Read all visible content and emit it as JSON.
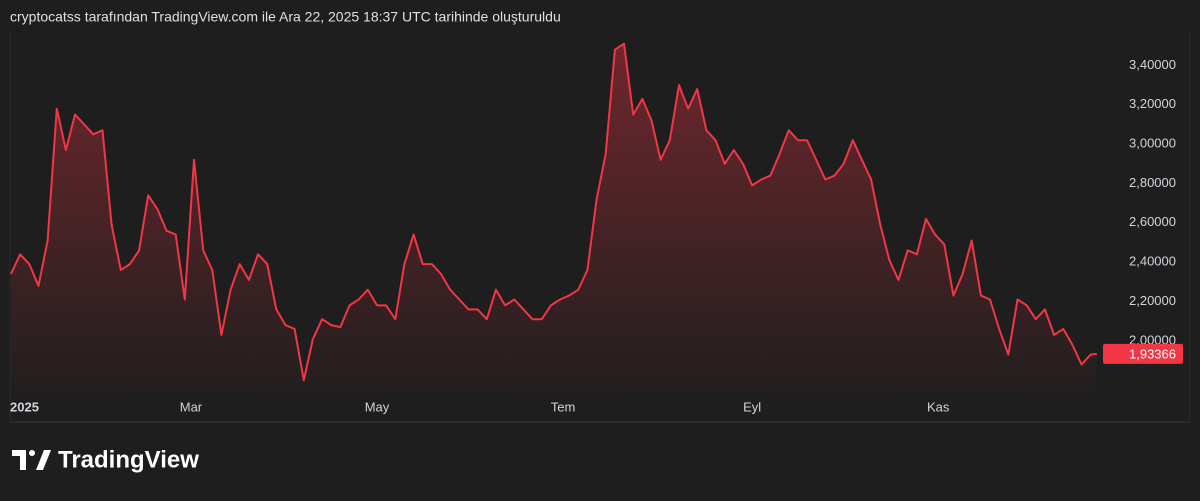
{
  "header": "cryptocatss tarafından TradingView.com ile Ara 22, 2025 18:37 UTC tarihinde oluşturuldu",
  "brand": "TradingView",
  "chart_data": {
    "type": "line",
    "color": "#f23645",
    "x": [
      0,
      3,
      6,
      9,
      12,
      15,
      18,
      21,
      24,
      27,
      30,
      33,
      36,
      39,
      42,
      45,
      48,
      51,
      54,
      57,
      60,
      63,
      66,
      69,
      72,
      75,
      78,
      81,
      84,
      87,
      90,
      93,
      96,
      99,
      102,
      105,
      108,
      111,
      114,
      117,
      120,
      123,
      126,
      129,
      132,
      135,
      138,
      141,
      144,
      147,
      150,
      153,
      156,
      159,
      162,
      165,
      168,
      171,
      174,
      177,
      180,
      183,
      186,
      189,
      192,
      195,
      198,
      201,
      204,
      207,
      210,
      213,
      216,
      219,
      222,
      225,
      228,
      231,
      234,
      237,
      240,
      243,
      246,
      249,
      252,
      255,
      258,
      261,
      264,
      267,
      270,
      273,
      276,
      279,
      282,
      285,
      288,
      291,
      294,
      297,
      300,
      303,
      306,
      309,
      312,
      315,
      318,
      321,
      324,
      327,
      330,
      333,
      336,
      339,
      342,
      345,
      348,
      351,
      354,
      356
    ],
    "values": [
      2.34,
      2.44,
      2.39,
      2.28,
      2.51,
      3.18,
      2.97,
      3.15,
      3.1,
      3.05,
      3.07,
      2.59,
      2.36,
      2.39,
      2.46,
      2.74,
      2.67,
      2.56,
      2.54,
      2.21,
      2.92,
      2.46,
      2.36,
      2.03,
      2.26,
      2.39,
      2.31,
      2.44,
      2.39,
      2.16,
      2.08,
      2.06,
      1.8,
      2.01,
      2.11,
      2.08,
      2.07,
      2.18,
      2.21,
      2.26,
      2.18,
      2.18,
      2.11,
      2.39,
      2.54,
      2.39,
      2.39,
      2.34,
      2.26,
      2.21,
      2.16,
      2.16,
      2.11,
      2.26,
      2.18,
      2.21,
      2.16,
      2.11,
      2.11,
      2.18,
      2.21,
      2.23,
      2.26,
      2.36,
      2.72,
      2.95,
      3.48,
      3.51,
      3.15,
      3.23,
      3.12,
      2.92,
      3.02,
      3.3,
      3.18,
      3.28,
      3.07,
      3.02,
      2.9,
      2.97,
      2.9,
      2.79,
      2.82,
      2.84,
      2.95,
      3.07,
      3.02,
      3.02,
      2.92,
      2.82,
      2.84,
      2.9,
      3.02,
      2.92,
      2.82,
      2.59,
      2.41,
      2.31,
      2.46,
      2.44,
      2.62,
      2.54,
      2.49,
      2.23,
      2.34,
      2.51,
      2.23,
      2.21,
      2.06,
      1.93,
      2.21,
      2.18,
      2.11,
      2.16,
      2.03,
      2.06,
      1.98,
      1.88,
      1.93,
      1.93366
    ],
    "last_value_label": "1,93366",
    "xlim": [
      0,
      357
    ],
    "xticks": [
      {
        "value": 0,
        "label": "2025"
      },
      {
        "value": 59,
        "label": "Mar"
      },
      {
        "value": 120,
        "label": "May"
      },
      {
        "value": 181,
        "label": "Tem"
      },
      {
        "value": 243,
        "label": "Eyl"
      },
      {
        "value": 304,
        "label": "Kas"
      }
    ],
    "ylim": [
      1.74,
      3.58
    ],
    "yticks": [
      {
        "value": 2.0,
        "label": "2,00000"
      },
      {
        "value": 2.2,
        "label": "2,20000"
      },
      {
        "value": 2.4,
        "label": "2,40000"
      },
      {
        "value": 2.6,
        "label": "2,60000"
      },
      {
        "value": 2.8,
        "label": "2,80000"
      },
      {
        "value": 3.0,
        "label": "3,00000"
      },
      {
        "value": 3.2,
        "label": "3,20000"
      },
      {
        "value": 3.4,
        "label": "3,40000"
      }
    ]
  }
}
